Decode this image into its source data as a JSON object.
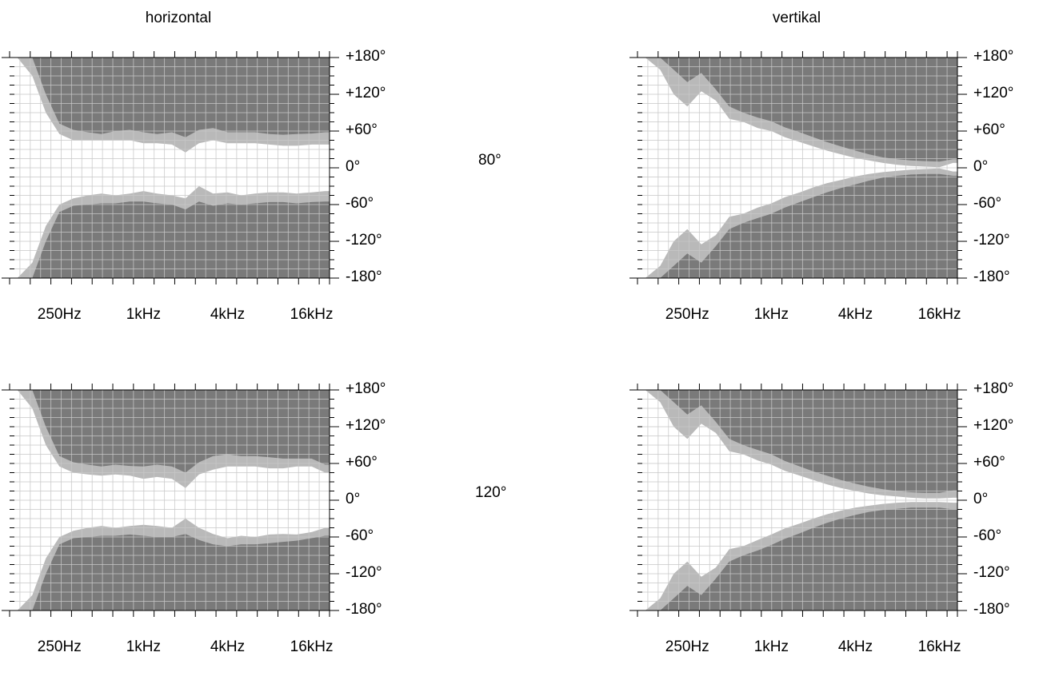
{
  "headers": {
    "left": "horizontal",
    "right": "vertikal"
  },
  "rows": [
    {
      "label": "80°"
    },
    {
      "label": "120°"
    }
  ],
  "colors": {
    "dark": "#7a7a7a",
    "light": "#b9b9b9",
    "grid": "#c8c8c8",
    "background": "#ffffff"
  },
  "chart_data": [
    {
      "type": "area",
      "title": "horizontal",
      "row_label": "80°",
      "x_scale": "log",
      "x_ticks": [
        "250Hz",
        "1kHz",
        "4kHz",
        "16kHz"
      ],
      "y_ticks": [
        "+180°",
        "+120°",
        "+60°",
        "0°",
        "-60°",
        "-120°",
        "-180°"
      ],
      "ylim": [
        -180,
        180
      ],
      "grid": true,
      "x_hz": [
        125,
        160,
        200,
        250,
        315,
        400,
        500,
        630,
        800,
        1000,
        1250,
        1600,
        2000,
        2500,
        3150,
        4000,
        5000,
        6300,
        8000,
        10000,
        12500,
        16000,
        20000
      ],
      "series": [
        {
          "values_upper_outer": [
            180,
            150,
            90,
            55,
            45,
            45,
            45,
            45,
            45,
            40,
            40,
            38,
            25,
            40,
            45,
            40,
            40,
            40,
            38,
            36,
            36,
            38,
            38
          ]
        },
        {
          "values_upper_inner": [
            180,
            180,
            120,
            72,
            62,
            58,
            55,
            60,
            62,
            58,
            55,
            58,
            50,
            62,
            65,
            58,
            58,
            58,
            55,
            54,
            55,
            56,
            58
          ]
        },
        {
          "values_lower_outer": [
            -180,
            -155,
            -95,
            -60,
            -50,
            -45,
            -42,
            -45,
            -42,
            -38,
            -42,
            -45,
            -50,
            -30,
            -42,
            -40,
            -45,
            -42,
            -40,
            -40,
            -42,
            -40,
            -38
          ]
        },
        {
          "values_lower_inner": [
            -180,
            -180,
            -120,
            -72,
            -62,
            -60,
            -58,
            -58,
            -55,
            -55,
            -58,
            -60,
            -68,
            -55,
            -62,
            -58,
            -60,
            -58,
            -56,
            -56,
            -58,
            -56,
            -55
          ]
        }
      ]
    },
    {
      "type": "area",
      "title": "vertikal",
      "row_label": "80°",
      "x_scale": "log",
      "x_ticks": [
        "250Hz",
        "1kHz",
        "4kHz",
        "16kHz"
      ],
      "y_ticks": [
        "+180°",
        "+120°",
        "+60°",
        "0°",
        "-60°",
        "-120°",
        "-180°"
      ],
      "ylim": [
        -180,
        180
      ],
      "grid": true,
      "x_hz": [
        125,
        160,
        200,
        250,
        315,
        400,
        500,
        630,
        800,
        1000,
        1250,
        1600,
        2000,
        2500,
        3150,
        4000,
        5000,
        6300,
        8000,
        10000,
        12500,
        16000,
        20000
      ],
      "series": [
        {
          "values_upper_outer": [
            180,
            160,
            120,
            100,
            125,
            110,
            80,
            75,
            65,
            60,
            50,
            42,
            35,
            28,
            22,
            16,
            12,
            8,
            5,
            3,
            2,
            1,
            8
          ]
        },
        {
          "values_upper_inner": [
            180,
            180,
            160,
            140,
            155,
            128,
            100,
            90,
            82,
            76,
            66,
            58,
            50,
            42,
            35,
            28,
            22,
            17,
            14,
            12,
            11,
            10,
            14
          ]
        },
        {
          "values_lower_outer": [
            -180,
            -160,
            -120,
            -100,
            -125,
            -110,
            -80,
            -75,
            -65,
            -58,
            -48,
            -40,
            -32,
            -25,
            -20,
            -14,
            -10,
            -7,
            -5,
            -3,
            -2,
            -1,
            -6
          ]
        },
        {
          "values_lower_inner": [
            -180,
            -180,
            -160,
            -140,
            -155,
            -128,
            -100,
            -90,
            -82,
            -75,
            -65,
            -56,
            -48,
            -40,
            -33,
            -27,
            -21,
            -16,
            -13,
            -11,
            -10,
            -10,
            -13
          ]
        }
      ]
    },
    {
      "type": "area",
      "title": "horizontal",
      "row_label": "120°",
      "x_scale": "log",
      "x_ticks": [
        "250Hz",
        "1kHz",
        "4kHz",
        "16kHz"
      ],
      "y_ticks": [
        "+180°",
        "+120°",
        "+60°",
        "0°",
        "-60°",
        "-120°",
        "-180°"
      ],
      "ylim": [
        -180,
        180
      ],
      "grid": true,
      "x_hz": [
        125,
        160,
        200,
        250,
        315,
        400,
        500,
        630,
        800,
        1000,
        1250,
        1600,
        2000,
        2500,
        3150,
        4000,
        5000,
        6300,
        8000,
        10000,
        12500,
        16000,
        20000
      ],
      "series": [
        {
          "values_upper_outer": [
            180,
            150,
            90,
            55,
            45,
            42,
            40,
            42,
            40,
            35,
            38,
            35,
            20,
            42,
            50,
            55,
            55,
            55,
            52,
            52,
            55,
            55,
            45
          ]
        },
        {
          "values_upper_inner": [
            180,
            180,
            120,
            72,
            62,
            58,
            55,
            58,
            56,
            55,
            58,
            55,
            45,
            62,
            72,
            75,
            72,
            72,
            70,
            68,
            68,
            68,
            58
          ]
        },
        {
          "values_lower_outer": [
            -180,
            -155,
            -95,
            -60,
            -50,
            -45,
            -42,
            -45,
            -42,
            -40,
            -42,
            -45,
            -30,
            -45,
            -55,
            -62,
            -58,
            -60,
            -56,
            -55,
            -56,
            -52,
            -45
          ]
        },
        {
          "values_lower_inner": [
            -180,
            -180,
            -120,
            -72,
            -62,
            -60,
            -58,
            -58,
            -56,
            -58,
            -60,
            -60,
            -55,
            -65,
            -72,
            -75,
            -72,
            -72,
            -70,
            -68,
            -66,
            -62,
            -58
          ]
        }
      ]
    },
    {
      "type": "area",
      "title": "vertikal",
      "row_label": "120°",
      "x_scale": "log",
      "x_ticks": [
        "250Hz",
        "1kHz",
        "4kHz",
        "16kHz"
      ],
      "y_ticks": [
        "+180°",
        "+120°",
        "+60°",
        "0°",
        "-60°",
        "-120°",
        "-180°"
      ],
      "ylim": [
        -180,
        180
      ],
      "grid": true,
      "x_hz": [
        125,
        160,
        200,
        250,
        315,
        400,
        500,
        630,
        800,
        1000,
        1250,
        1600,
        2000,
        2500,
        3150,
        4000,
        5000,
        6300,
        8000,
        10000,
        12500,
        16000,
        20000
      ],
      "series": [
        {
          "values_upper_outer": [
            180,
            160,
            120,
            100,
            125,
            110,
            80,
            75,
            65,
            58,
            48,
            40,
            33,
            26,
            20,
            15,
            11,
            8,
            6,
            4,
            3,
            3,
            4
          ]
        },
        {
          "values_upper_inner": [
            180,
            180,
            160,
            140,
            155,
            128,
            100,
            90,
            82,
            75,
            64,
            55,
            47,
            40,
            33,
            27,
            22,
            18,
            15,
            13,
            12,
            12,
            16
          ]
        },
        {
          "values_lower_outer": [
            -180,
            -160,
            -120,
            -100,
            -125,
            -110,
            -80,
            -75,
            -65,
            -56,
            -46,
            -38,
            -30,
            -23,
            -17,
            -12,
            -9,
            -6,
            -4,
            -3,
            -3,
            -3,
            -4
          ]
        },
        {
          "values_lower_inner": [
            -180,
            -180,
            -160,
            -140,
            -155,
            -128,
            -100,
            -90,
            -82,
            -73,
            -63,
            -54,
            -45,
            -37,
            -30,
            -24,
            -19,
            -16,
            -14,
            -12,
            -12,
            -12,
            -15
          ]
        }
      ]
    }
  ]
}
